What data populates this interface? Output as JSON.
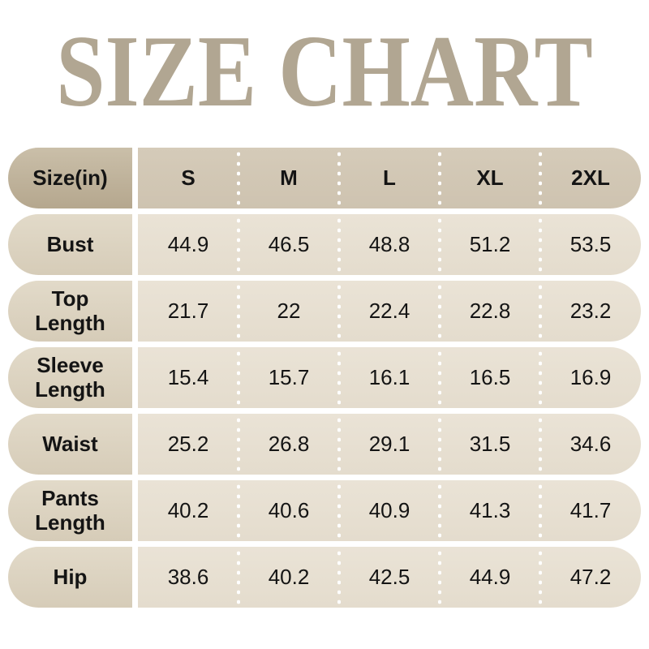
{
  "title": "SIZE CHART",
  "table": {
    "header": {
      "label": "Size(in)",
      "sizes": [
        "S",
        "M",
        "L",
        "XL",
        "2XL"
      ]
    },
    "rows": [
      {
        "label": "Bust",
        "values": [
          "44.9",
          "46.5",
          "48.8",
          "51.2",
          "53.5"
        ]
      },
      {
        "label": "Top Length",
        "values": [
          "21.7",
          "22",
          "22.4",
          "22.8",
          "23.2"
        ]
      },
      {
        "label": "Sleeve Length",
        "values": [
          "15.4",
          "15.7",
          "16.1",
          "16.5",
          "16.9"
        ]
      },
      {
        "label": "Waist",
        "values": [
          "25.2",
          "26.8",
          "29.1",
          "31.5",
          "34.6"
        ]
      },
      {
        "label": "Pants Length",
        "values": [
          "40.2",
          "40.6",
          "40.9",
          "41.3",
          "41.7"
        ]
      },
      {
        "label": "Hip",
        "values": [
          "38.6",
          "40.2",
          "42.5",
          "44.9",
          "47.2"
        ]
      }
    ]
  },
  "chart_data": {
    "type": "table",
    "title": "SIZE CHART",
    "unit": "in",
    "columns": [
      "Size(in)",
      "S",
      "M",
      "L",
      "XL",
      "2XL"
    ],
    "series": [
      {
        "name": "Bust",
        "values": [
          44.9,
          46.5,
          48.8,
          51.2,
          53.5
        ]
      },
      {
        "name": "Top Length",
        "values": [
          21.7,
          22,
          22.4,
          22.8,
          23.2
        ]
      },
      {
        "name": "Sleeve Length",
        "values": [
          15.4,
          15.7,
          16.1,
          16.5,
          16.9
        ]
      },
      {
        "name": "Waist",
        "values": [
          25.2,
          26.8,
          29.1,
          31.5,
          34.6
        ]
      },
      {
        "name": "Pants Length",
        "values": [
          40.2,
          40.6,
          40.9,
          41.3,
          41.7
        ]
      },
      {
        "name": "Hip",
        "values": [
          38.6,
          40.2,
          42.5,
          44.9,
          47.2
        ]
      }
    ]
  },
  "colors": {
    "background": "#ffffff",
    "title": "#b1a692",
    "text": "#141414",
    "dot": "#ffffff",
    "header_label_top": "#cabfa9",
    "header_label_bottom": "#b5a78e",
    "header_band_top": "#d5cbb9",
    "header_band_bottom": "#cec3b0",
    "row_label_top": "#e2dac9",
    "row_label_bottom": "#d6ccb8",
    "row_band_top": "#eae3d6",
    "row_band_bottom": "#e4dccd"
  }
}
